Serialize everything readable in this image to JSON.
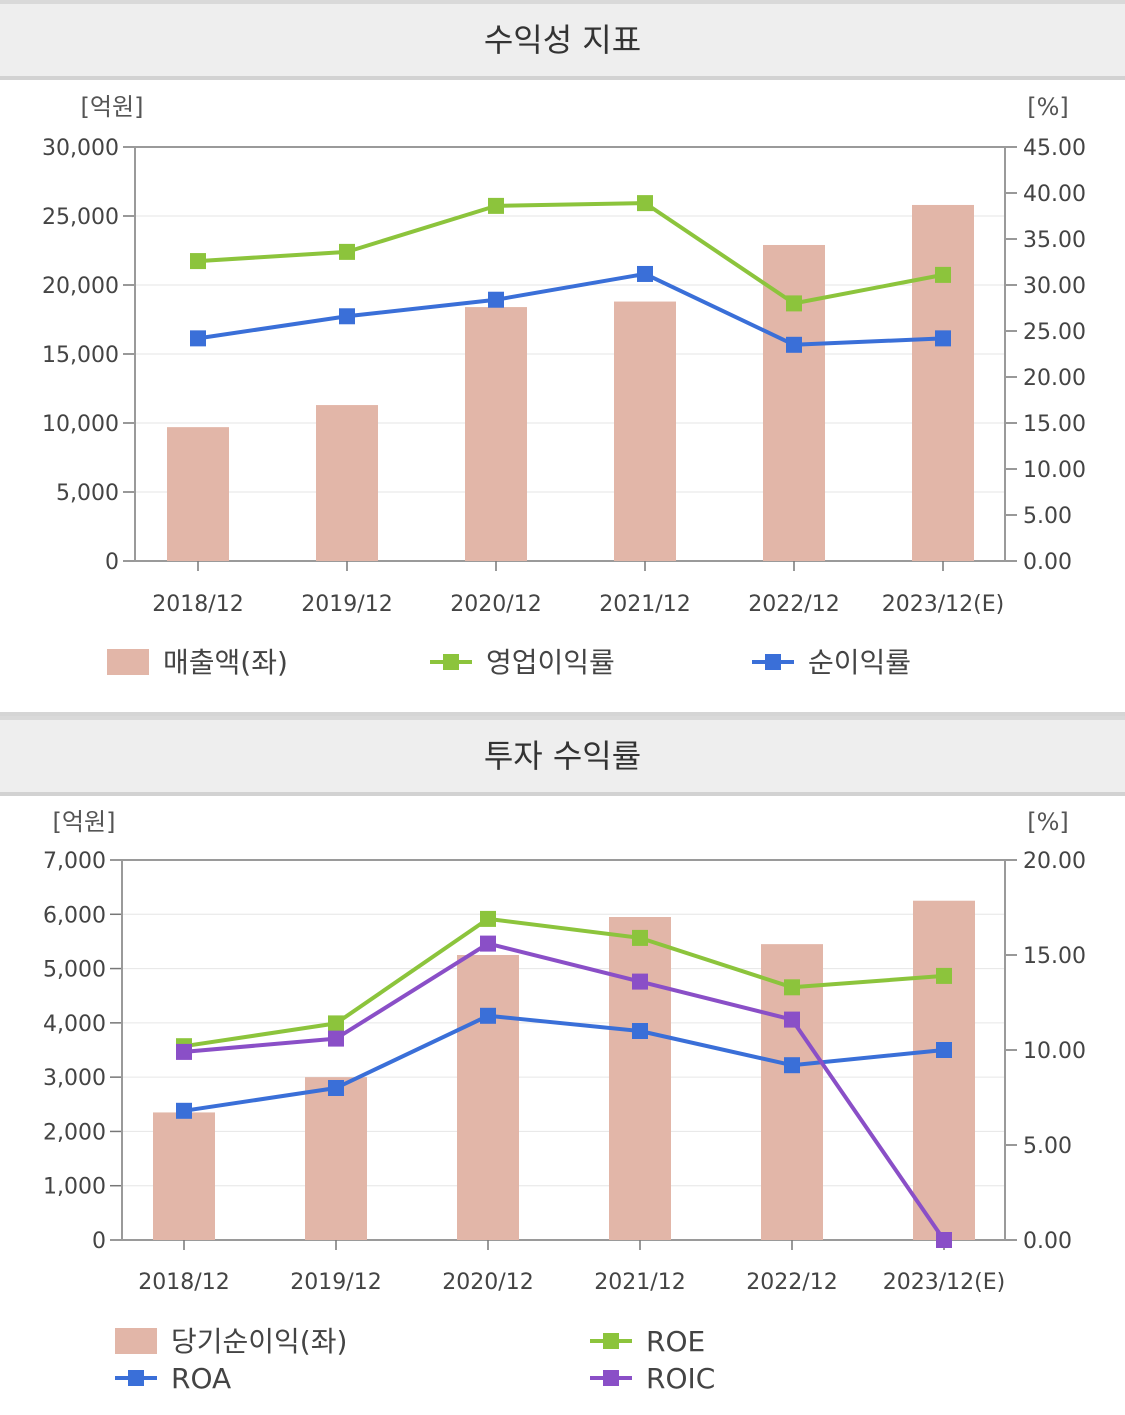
{
  "panels": [
    {
      "title": "수익성 지표"
    },
    {
      "title": "투자 수익률"
    }
  ],
  "chart_data": [
    {
      "type": "bar",
      "title": "수익성 지표",
      "categories": [
        "2018/12",
        "2019/12",
        "2020/12",
        "2021/12",
        "2022/12",
        "2023/12(E)"
      ],
      "left_axis": {
        "unit": "[억원]",
        "range": [
          0,
          30000
        ],
        "ticks": [
          "0",
          "5,000",
          "10,000",
          "15,000",
          "20,000",
          "25,000",
          "30,000"
        ]
      },
      "right_axis": {
        "unit": "[%]",
        "range": [
          0,
          45
        ],
        "ticks": [
          "0.00",
          "5.00",
          "10.00",
          "15.00",
          "20.00",
          "25.00",
          "30.00",
          "35.00",
          "40.00",
          "45.00"
        ]
      },
      "grid": true,
      "legend_position": "bottom",
      "series": [
        {
          "name": "매출액(좌)",
          "kind": "bar",
          "axis": "left",
          "color": "#e2b6a8",
          "values": [
            9700,
            11300,
            18400,
            18800,
            22900,
            25800
          ]
        },
        {
          "name": "영업이익률",
          "kind": "line",
          "axis": "right",
          "color": "#8cc43c",
          "values": [
            32.6,
            33.6,
            38.6,
            38.9,
            28.0,
            31.1
          ]
        },
        {
          "name": "순이익률",
          "kind": "line",
          "axis": "right",
          "color": "#3a6fd8",
          "values": [
            24.2,
            26.6,
            28.4,
            31.2,
            23.5,
            24.2
          ]
        }
      ]
    },
    {
      "type": "bar",
      "title": "투자 수익률",
      "categories": [
        "2018/12",
        "2019/12",
        "2020/12",
        "2021/12",
        "2022/12",
        "2023/12(E)"
      ],
      "left_axis": {
        "unit": "[억원]",
        "range": [
          0,
          7000
        ],
        "ticks": [
          "0",
          "1,000",
          "2,000",
          "3,000",
          "4,000",
          "5,000",
          "6,000",
          "7,000"
        ]
      },
      "right_axis": {
        "unit": "[%]",
        "range": [
          0,
          20
        ],
        "ticks": [
          "0.00",
          "5.00",
          "10.00",
          "15.00",
          "20.00"
        ]
      },
      "grid": true,
      "legend_position": "bottom",
      "series": [
        {
          "name": "당기순이익(좌)",
          "kind": "bar",
          "axis": "left",
          "color": "#e2b6a8",
          "values": [
            2350,
            3000,
            5250,
            5950,
            5450,
            6250
          ]
        },
        {
          "name": "ROE",
          "kind": "line",
          "axis": "right",
          "color": "#8cc43c",
          "values": [
            10.2,
            11.4,
            16.9,
            15.9,
            13.3,
            13.9
          ]
        },
        {
          "name": "ROA",
          "kind": "line",
          "axis": "right",
          "color": "#3a6fd8",
          "values": [
            6.8,
            8.0,
            11.8,
            11.0,
            9.2,
            10.0
          ]
        },
        {
          "name": "ROIC",
          "kind": "line",
          "axis": "right",
          "color": "#8a4fc7",
          "values": [
            9.9,
            10.6,
            15.6,
            13.6,
            11.6,
            0.0
          ]
        }
      ]
    }
  ]
}
